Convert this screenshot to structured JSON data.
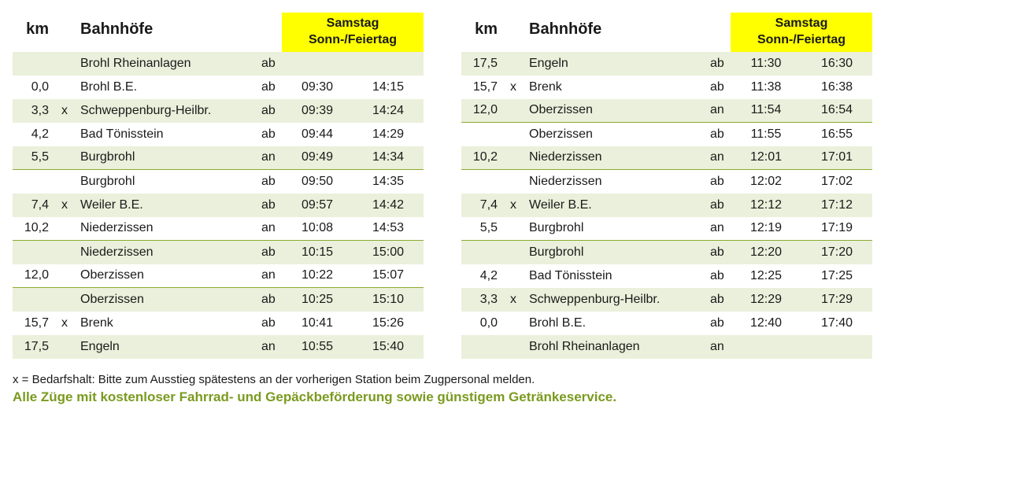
{
  "headers": {
    "km": "km",
    "stations": "Bahnhöfe",
    "day_line1": "Samstag",
    "day_line2": "Sonn-/Feiertag"
  },
  "left": {
    "rows": [
      {
        "km": "",
        "x": "",
        "station": "Brohl Rheinanlagen",
        "ad": "ab",
        "t1": "",
        "t2": "",
        "shade": true,
        "sep": false
      },
      {
        "km": "0,0",
        "x": "",
        "station": "Brohl B.E.",
        "ad": "ab",
        "t1": "09:30",
        "t2": "14:15",
        "shade": false,
        "sep": false
      },
      {
        "km": "3,3",
        "x": "x",
        "station": "Schweppenburg-Heilbr.",
        "ad": "ab",
        "t1": "09:39",
        "t2": "14:24",
        "shade": true,
        "sep": false
      },
      {
        "km": "4,2",
        "x": "",
        "station": "Bad Tönisstein",
        "ad": "ab",
        "t1": "09:44",
        "t2": "14:29",
        "shade": false,
        "sep": false
      },
      {
        "km": "5,5",
        "x": "",
        "station": "Burgbrohl",
        "ad": "an",
        "t1": "09:49",
        "t2": "14:34",
        "shade": true,
        "sep": true
      },
      {
        "km": "",
        "x": "",
        "station": "Burgbrohl",
        "ad": "ab",
        "t1": "09:50",
        "t2": "14:35",
        "shade": false,
        "sep": false
      },
      {
        "km": "7,4",
        "x": "x",
        "station": "Weiler B.E.",
        "ad": "ab",
        "t1": "09:57",
        "t2": "14:42",
        "shade": true,
        "sep": false
      },
      {
        "km": "10,2",
        "x": "",
        "station": "Niederzissen",
        "ad": "an",
        "t1": "10:08",
        "t2": "14:53",
        "shade": false,
        "sep": true
      },
      {
        "km": "",
        "x": "",
        "station": "Niederzissen",
        "ad": "ab",
        "t1": "10:15",
        "t2": "15:00",
        "shade": true,
        "sep": false
      },
      {
        "km": "12,0",
        "x": "",
        "station": "Oberzissen",
        "ad": "an",
        "t1": "10:22",
        "t2": "15:07",
        "shade": false,
        "sep": true
      },
      {
        "km": "",
        "x": "",
        "station": "Oberzissen",
        "ad": "ab",
        "t1": "10:25",
        "t2": "15:10",
        "shade": true,
        "sep": false
      },
      {
        "km": "15,7",
        "x": "x",
        "station": "Brenk",
        "ad": "ab",
        "t1": "10:41",
        "t2": "15:26",
        "shade": false,
        "sep": false
      },
      {
        "km": "17,5",
        "x": "",
        "station": "Engeln",
        "ad": "an",
        "t1": "10:55",
        "t2": "15:40",
        "shade": true,
        "sep": false
      }
    ]
  },
  "right": {
    "rows": [
      {
        "km": "17,5",
        "x": "",
        "station": "Engeln",
        "ad": "ab",
        "t1": "11:30",
        "t2": "16:30",
        "shade": true,
        "sep": false
      },
      {
        "km": "15,7",
        "x": "x",
        "station": "Brenk",
        "ad": "ab",
        "t1": "11:38",
        "t2": "16:38",
        "shade": false,
        "sep": false
      },
      {
        "km": "12,0",
        "x": "",
        "station": "Oberzissen",
        "ad": "an",
        "t1": "11:54",
        "t2": "16:54",
        "shade": true,
        "sep": true
      },
      {
        "km": "",
        "x": "",
        "station": "Oberzissen",
        "ad": "ab",
        "t1": "11:55",
        "t2": "16:55",
        "shade": false,
        "sep": false
      },
      {
        "km": "10,2",
        "x": "",
        "station": "Niederzissen",
        "ad": "an",
        "t1": "12:01",
        "t2": "17:01",
        "shade": true,
        "sep": true
      },
      {
        "km": "",
        "x": "",
        "station": "Niederzissen",
        "ad": "ab",
        "t1": "12:02",
        "t2": "17:02",
        "shade": false,
        "sep": false
      },
      {
        "km": "7,4",
        "x": "x",
        "station": "Weiler B.E.",
        "ad": "ab",
        "t1": "12:12",
        "t2": "17:12",
        "shade": true,
        "sep": false
      },
      {
        "km": "5,5",
        "x": "",
        "station": "Burgbrohl",
        "ad": "an",
        "t1": "12:19",
        "t2": "17:19",
        "shade": false,
        "sep": true
      },
      {
        "km": "",
        "x": "",
        "station": "Burgbrohl",
        "ad": "ab",
        "t1": "12:20",
        "t2": "17:20",
        "shade": true,
        "sep": false
      },
      {
        "km": "4,2",
        "x": "",
        "station": "Bad Tönisstein",
        "ad": "ab",
        "t1": "12:25",
        "t2": "17:25",
        "shade": false,
        "sep": false
      },
      {
        "km": "3,3",
        "x": "x",
        "station": "Schweppenburg-Heilbr.",
        "ad": "ab",
        "t1": "12:29",
        "t2": "17:29",
        "shade": true,
        "sep": false
      },
      {
        "km": "0,0",
        "x": "",
        "station": "Brohl B.E.",
        "ad": "ab",
        "t1": "12:40",
        "t2": "17:40",
        "shade": false,
        "sep": false
      },
      {
        "km": "",
        "x": "",
        "station": "Brohl Rheinanlagen",
        "ad": "an",
        "t1": "",
        "t2": "",
        "shade": true,
        "sep": false
      }
    ]
  },
  "footnotes": {
    "x_note": "x = Bedarfshalt: Bitte zum Ausstieg spätestens an der vorherigen Station beim Zugpersonal melden.",
    "bold_note": "Alle Züge mit kostenloser Fahrrad- und Gepäckbeförderung sowie günstigem Getränkeservice."
  },
  "colors": {
    "header_bg": "#ffff00",
    "shade_bg": "#eaf0db",
    "sep_color": "#8aab2f",
    "accent_text": "#7a9a1f"
  }
}
